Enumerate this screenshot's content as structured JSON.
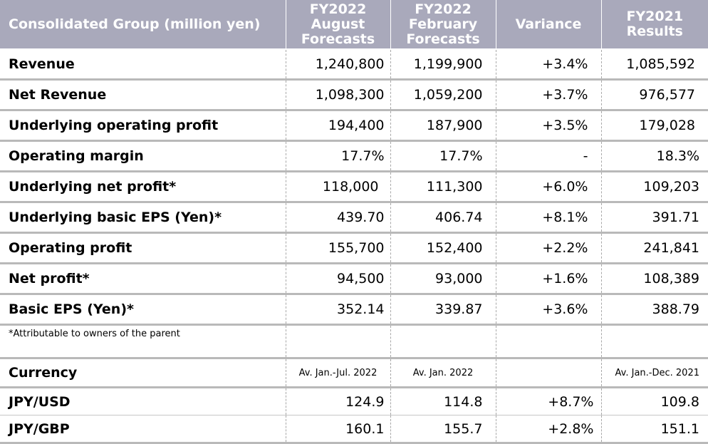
{
  "table": {
    "headers": [
      [
        "Consolidated Group (million yen)"
      ],
      [
        "FY2022",
        "August",
        "Forecasts"
      ],
      [
        "FY2022",
        "February",
        "Forecasts"
      ],
      [
        "Variance"
      ],
      [
        "FY2021",
        "Results"
      ]
    ],
    "rows": [
      {
        "label": "Revenue",
        "values": [
          "1,240,800",
          "1,199,900",
          "+3.4%",
          "1,085,592"
        ]
      },
      {
        "label": "Net Revenue",
        "values": [
          "1,098,300",
          "1,059,200",
          "+3.7%",
          "976,577"
        ]
      },
      {
        "label": "Underlying operating profit",
        "values": [
          "194,400",
          "187,900",
          "+3.5%",
          "179,028"
        ]
      },
      {
        "label": "Operating margin",
        "values": [
          "17.7%",
          "17.7%",
          "-",
          "18.3%"
        ]
      },
      {
        "label": "Underlying net profit*",
        "values": [
          "118,000",
          "111,300",
          "+6.0%",
          "109,203"
        ]
      },
      {
        "label": "Underlying basic EPS (Yen)*",
        "values": [
          "439.70",
          "406.74",
          "+8.1%",
          "391.71"
        ]
      },
      {
        "label": "Operating profit",
        "values": [
          "155,700",
          "152,400",
          "+2.2%",
          "241,841"
        ]
      },
      {
        "label": "Net profit*",
        "values": [
          "94,500",
          "93,000",
          "+1.6%",
          "108,389"
        ]
      },
      {
        "label": "Basic EPS (Yen)*",
        "values": [
          "352.14",
          "339.87",
          "+3.6%",
          "388.79"
        ]
      }
    ],
    "footnote": "*Attributable to owners of the parent",
    "currency": {
      "label": "Currency",
      "periods": [
        "Av. Jan.-Jul. 2022",
        "Av. Jan. 2022",
        "",
        "Av. Jan.-Dec. 2021"
      ]
    },
    "fx_rows": [
      {
        "label": "JPY/USD",
        "values": [
          "124.9",
          "114.8",
          "+8.7%",
          "109.8"
        ]
      },
      {
        "label": "JPY/GBP",
        "values": [
          "160.1",
          "155.7",
          "+2.8%",
          "151.1"
        ]
      }
    ]
  },
  "colors": {
    "header_bg": "#a9a9bb",
    "header_text": "#ffffff",
    "row_divider": "#b9b9b9"
  }
}
